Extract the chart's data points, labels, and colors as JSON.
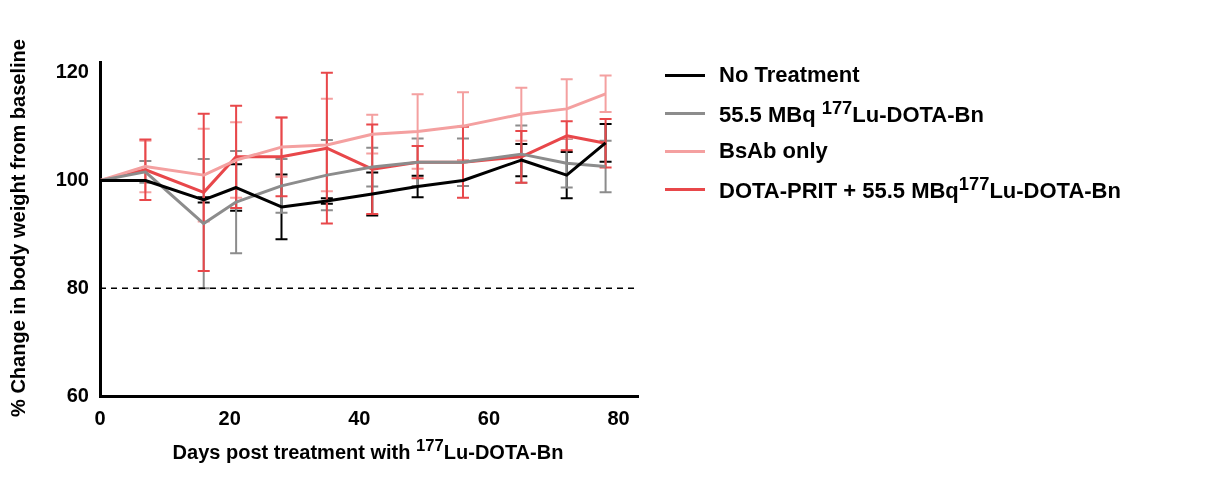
{
  "chart_data": {
    "type": "line",
    "xlabel": "Days post treatment with $^{177}$Lu-DOTA-Bn",
    "ylabel": "% Change in body weight from baseline",
    "x": [
      0,
      7,
      16,
      21,
      28,
      35,
      42,
      49,
      56,
      65,
      72,
      78
    ],
    "xlim": [
      0,
      83
    ],
    "xticks": [
      0,
      20,
      40,
      60,
      80
    ],
    "ylim": [
      60,
      122
    ],
    "yticks": [
      60,
      80,
      100,
      120
    ],
    "grid": false,
    "legend": "right",
    "marker": "none",
    "line_style": "solid",
    "ref_lines": [
      {
        "axis": "y",
        "value": 80,
        "color": "#000000",
        "line_style": "dashed"
      }
    ],
    "series": [
      {
        "name": "No Treatment",
        "color": "#000000",
        "values": [
          100,
          100,
          96.4,
          98.7,
          95.1,
          96.2,
          97.5,
          98.9,
          100,
          103.8,
          101,
          107
        ],
        "errors": [
          null,
          null,
          0.5,
          4.3,
          6,
          0.5,
          4,
          2,
          null,
          3,
          4.3,
          3.5
        ]
      },
      {
        "name": "55.5 MBq $^{177}$Lu-DOTA-Bn",
        "color": "#8c8c8c",
        "values": [
          100,
          101.6,
          92,
          96,
          99,
          101,
          102.5,
          103.4,
          103.4,
          104.9,
          103.2,
          102.6
        ],
        "errors": [
          null,
          2,
          12,
          9.5,
          5,
          6.5,
          3.6,
          4.4,
          4.4,
          5.3,
          4.5,
          4.8
        ]
      },
      {
        "name": "BsAb only",
        "color": "#f4a0a0",
        "values": [
          100,
          102.6,
          101,
          103.8,
          106.2,
          106.6,
          108.6,
          109.1,
          110.1,
          112.3,
          113.3,
          116.1
        ],
        "errors": [
          null,
          4.8,
          8.6,
          7,
          5.5,
          8.6,
          3.6,
          6.9,
          6.3,
          4.9,
          5.5,
          3.4
        ]
      },
      {
        "name": "DOTA-PRIT + 55.5 MBq$^{177}$Lu-DOTA-Bn",
        "color": "#e8474a",
        "values": [
          100,
          102,
          97.8,
          104.4,
          104.4,
          106,
          102.1,
          103.4,
          103.4,
          104.4,
          108.3,
          106.9
        ],
        "errors": [
          null,
          5.6,
          14.6,
          9.5,
          7.3,
          14,
          8.3,
          3,
          6.6,
          4.8,
          2.7,
          4.5
        ]
      }
    ]
  }
}
